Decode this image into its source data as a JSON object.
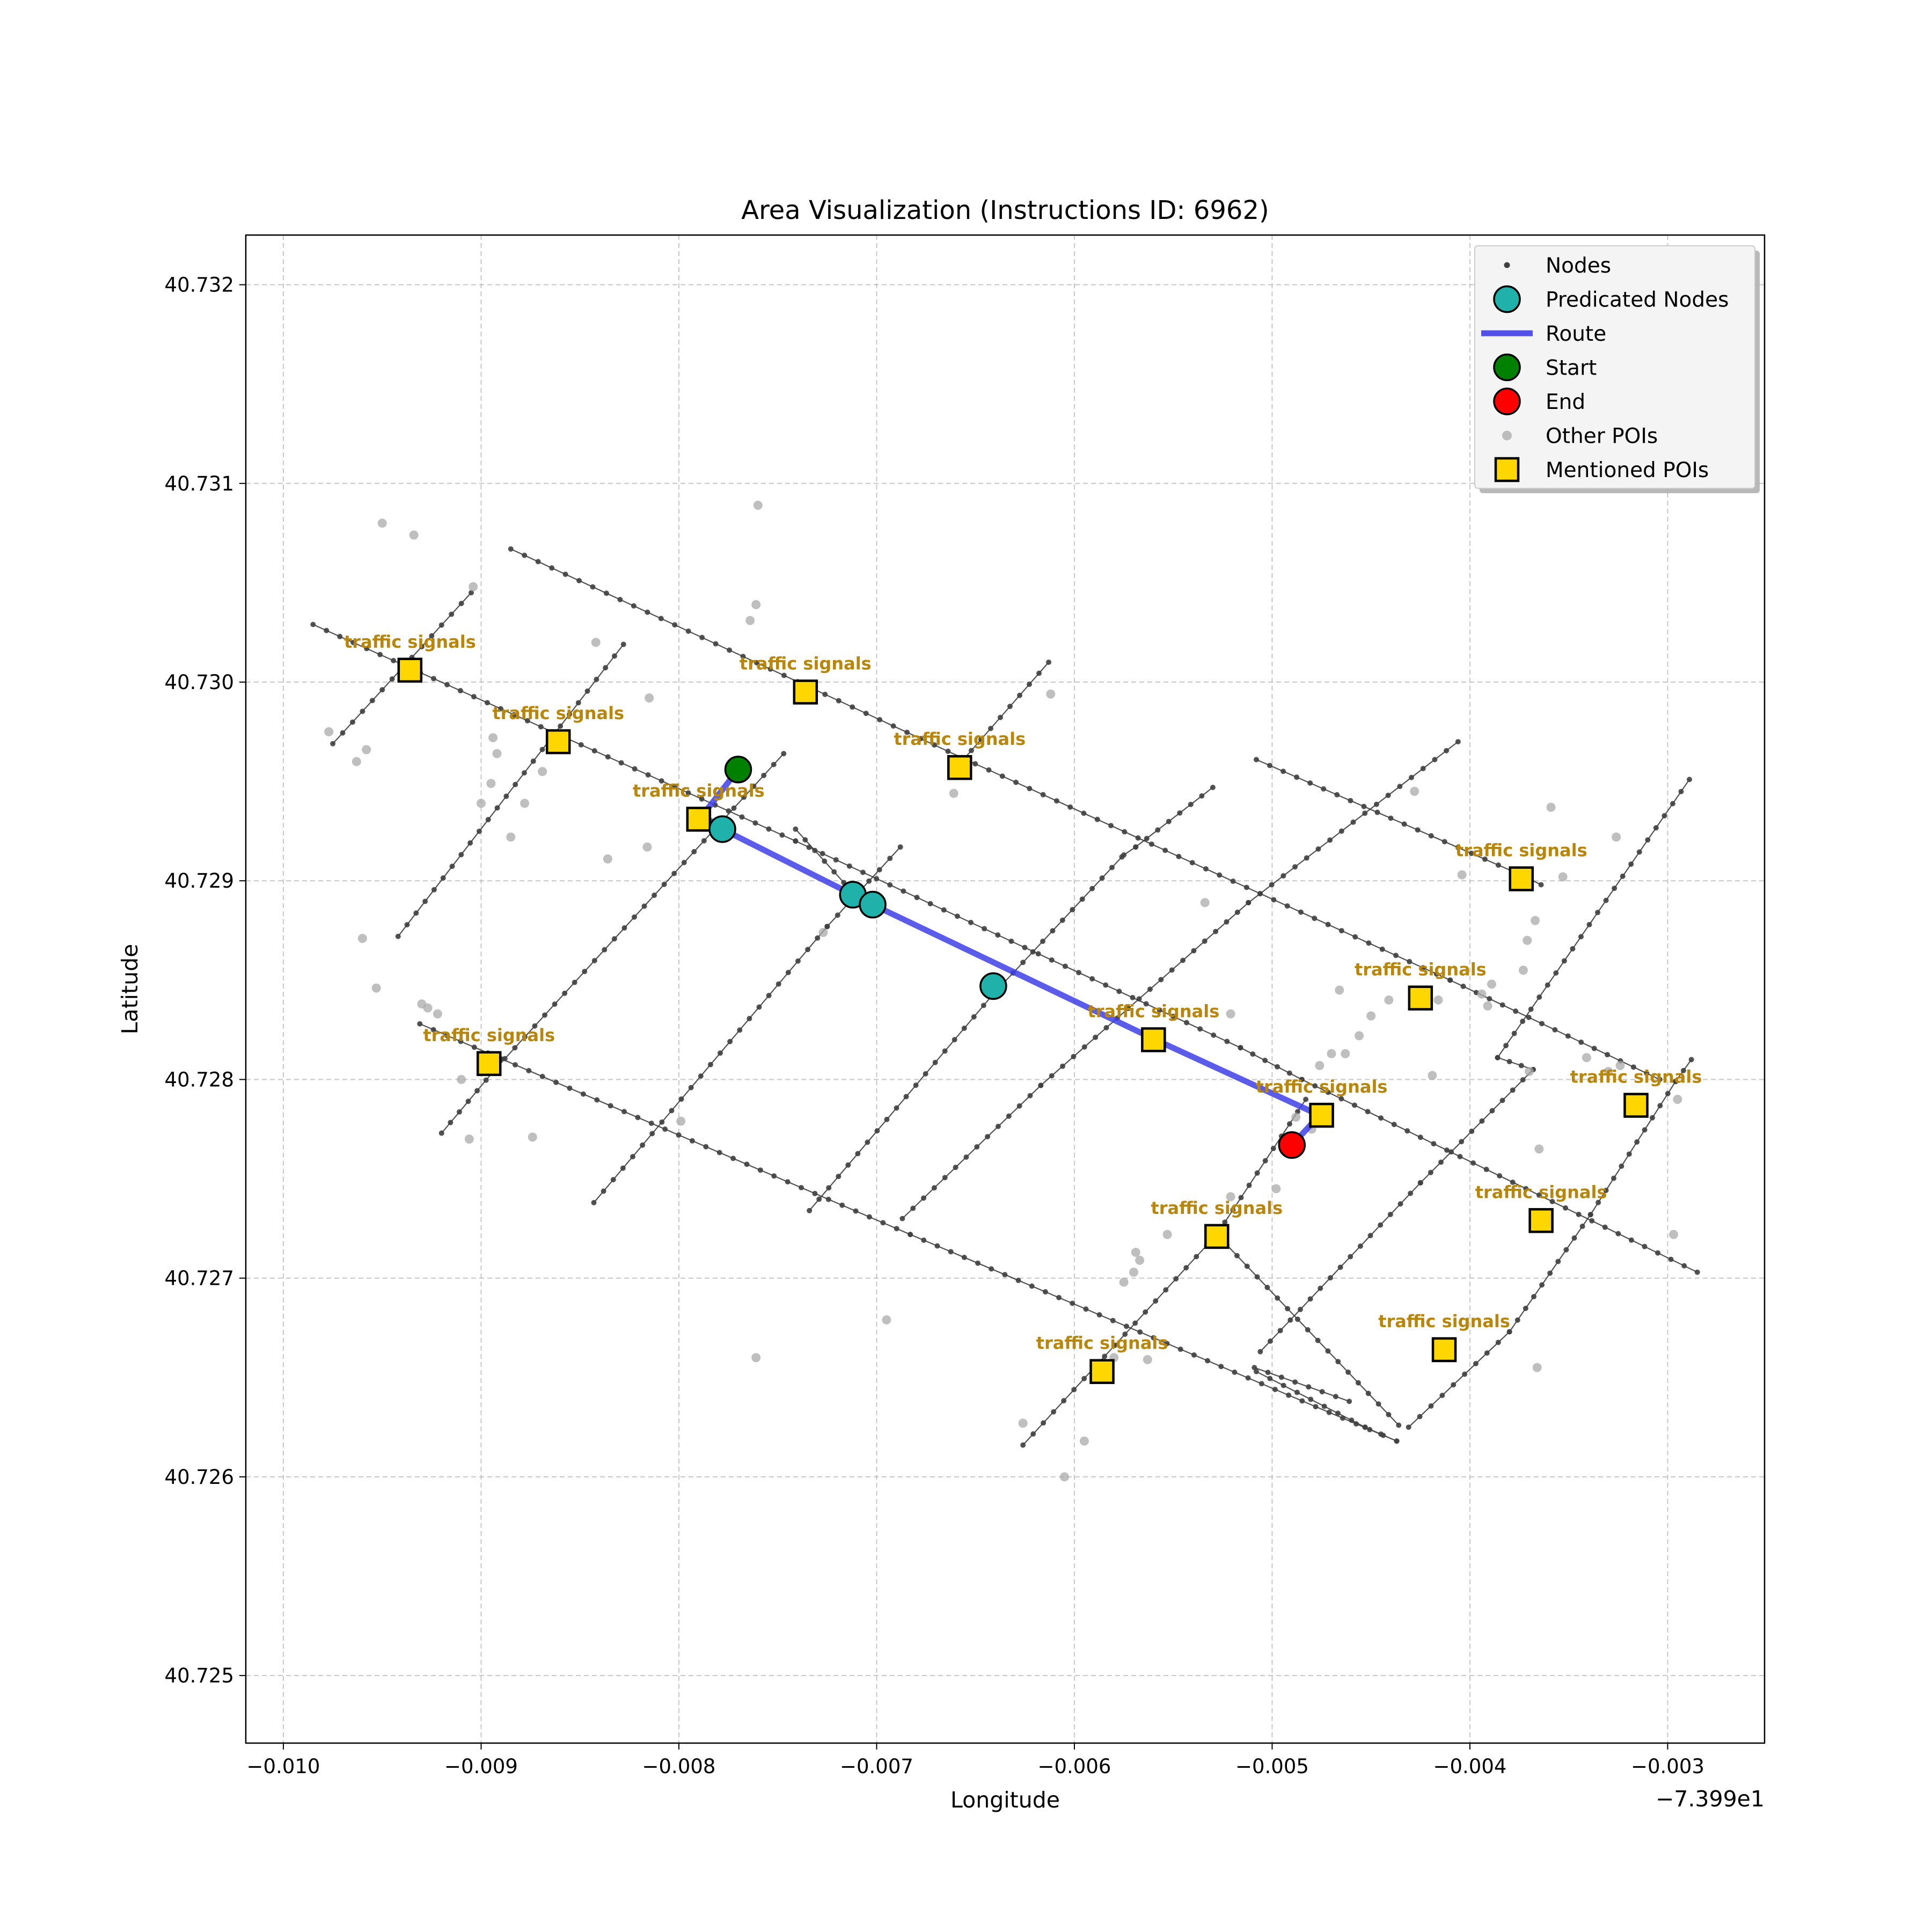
{
  "chart_data": {
    "type": "scatter",
    "title": "Area Visualization (Instructions ID: 6962)",
    "xlabel": "Longitude",
    "ylabel": "Latitude",
    "x_offset_text": "−7.399e1",
    "xlim": [
      -0.01019,
      -0.00251
    ],
    "ylim": [
      40.72466,
      40.73225
    ],
    "x_ticks": [
      -0.01,
      -0.009,
      -0.008,
      -0.007,
      -0.006,
      -0.005,
      -0.004,
      -0.003
    ],
    "x_tick_labels": [
      "−0.010",
      "−0.009",
      "−0.008",
      "−0.007",
      "−0.006",
      "−0.005",
      "−0.004",
      "−0.003"
    ],
    "y_ticks": [
      40.725,
      40.726,
      40.727,
      40.728,
      40.729,
      40.73,
      40.731,
      40.732
    ],
    "y_tick_labels": [
      "40.725",
      "40.726",
      "40.727",
      "40.728",
      "40.729",
      "40.730",
      "40.731",
      "40.732"
    ],
    "grid": true,
    "legend_position": "upper right",
    "legend": [
      {
        "label": "Nodes",
        "marker": "small-dot",
        "color": "#404040"
      },
      {
        "label": "Predicated Nodes",
        "marker": "circle",
        "color": "#20b2aa"
      },
      {
        "label": "Route",
        "marker": "line",
        "color": "#4040e8"
      },
      {
        "label": "Start",
        "marker": "circle",
        "color": "#008000"
      },
      {
        "label": "End",
        "marker": "circle",
        "color": "#ff0000"
      },
      {
        "label": "Other POIs",
        "marker": "dot",
        "color": "#a9a9a9"
      },
      {
        "label": "Mentioned POIs",
        "marker": "square",
        "color": "#ffd700"
      }
    ],
    "colors": {
      "node": "#404040",
      "road": "#333333",
      "predicated": "#20b2aa",
      "route": "#4040e8",
      "start": "#008000",
      "end": "#ff0000",
      "other_poi": "#a9a9a9",
      "mentioned_poi": "#ffd700",
      "poi_label": "#b8860b"
    },
    "roads": [
      [
        [
          -0.00985,
          40.73029
        ],
        [
          -0.00741,
          40.7292
        ],
        [
          -0.00516,
          40.72816
        ],
        [
          -0.00485,
          40.728
        ],
        [
          -0.00285,
          40.72703
        ]
      ],
      [
        [
          -0.00885,
          40.73067
        ],
        [
          -0.00657,
          40.72962
        ],
        [
          -0.0041,
          40.7285
        ],
        [
          -0.00304,
          40.728
        ]
      ],
      [
        [
          -0.00931,
          40.72828
        ],
        [
          -0.00683,
          40.72722
        ],
        [
          -0.00437,
          40.72618
        ],
        [
          -0.00453,
          40.72625
        ],
        [
          -0.00508,
          40.72653
        ]
      ],
      [
        [
          -0.00508,
          40.72961
        ],
        [
          -0.00372,
          40.72902
        ],
        [
          -0.00364,
          40.72898
        ]
      ],
      [
        [
          -0.0092,
          40.72773
        ],
        [
          -0.00893,
          40.72805
        ],
        [
          -0.00747,
          40.72964
        ]
      ],
      [
        [
          -0.00843,
          40.72738
        ],
        [
          -0.00725,
          40.72877
        ],
        [
          -0.00688,
          40.72917
        ]
      ],
      [
        [
          -0.00687,
          40.7273
        ],
        [
          -0.00617,
          40.72797
        ],
        [
          -0.00512,
          40.72889
        ],
        [
          -0.00406,
          40.7297
        ]
      ],
      [
        [
          -0.00734,
          40.72734
        ],
        [
          -0.00641,
          40.72843
        ],
        [
          -0.00576,
          40.72912
        ]
      ],
      [
        [
          -0.00626,
          40.72616
        ],
        [
          -0.00528,
          40.72722
        ],
        [
          -0.00483,
          40.7279
        ]
      ],
      [
        [
          -0.00506,
          40.72663
        ],
        [
          -0.00425,
          40.72748
        ],
        [
          -0.00368,
          40.72805
        ],
        [
          -0.00386,
          40.72811
        ],
        [
          -0.00289,
          40.72951
        ]
      ],
      [
        [
          -0.00431,
          40.72625
        ],
        [
          -0.0038,
          40.72673
        ],
        [
          -0.00339,
          40.72732
        ],
        [
          -0.00296,
          40.72799
        ],
        [
          -0.00288,
          40.7281
        ]
      ],
      [
        [
          -0.00509,
          40.72655
        ],
        [
          -0.00461,
          40.72638
        ]
      ],
      [
        [
          -0.00975,
          40.72969
        ],
        [
          -0.00905,
          40.73045
        ]
      ],
      [
        [
          -0.00942,
          40.72872
        ],
        [
          -0.00828,
          40.73019
        ]
      ],
      [
        [
          -0.00575,
          40.72913
        ],
        [
          -0.00569,
          40.72917
        ],
        [
          -0.0053,
          40.72947
        ]
      ],
      [
        [
          -0.00702,
          40.72883
        ],
        [
          -0.00741,
          40.72926
        ]
      ],
      [
        [
          -0.00657,
          40.7296
        ],
        [
          -0.00613,
          40.7301
        ]
      ],
      [
        [
          -0.00528,
          40.72722
        ],
        [
          -0.00436,
          40.72626
        ]
      ]
    ],
    "nodes_along_roads_step": 7.5e-05,
    "route": [
      [
        -0.0077,
        40.72956
      ],
      [
        -0.00788,
        40.72933
      ],
      [
        -0.00778,
        40.72926
      ],
      [
        -0.00712,
        40.72893
      ],
      [
        -0.00702,
        40.72888
      ],
      [
        -0.00559,
        40.7282
      ],
      [
        -0.00476,
        40.72782
      ],
      [
        -0.0049,
        40.72767
      ]
    ],
    "predicated_nodes": [
      [
        -0.00778,
        40.72926
      ],
      [
        -0.00712,
        40.72893
      ],
      [
        -0.00702,
        40.72888
      ],
      [
        -0.00641,
        40.72847
      ]
    ],
    "start": [
      -0.0077,
      40.72956
    ],
    "end": [
      -0.0049,
      40.72767
    ],
    "other_pois": [
      [
        -0.0095,
        40.7308
      ],
      [
        -0.00934,
        40.73074
      ],
      [
        -0.0076,
        40.73089
      ],
      [
        -0.00904,
        40.73048
      ],
      [
        -0.00761,
        40.73039
      ],
      [
        -0.00764,
        40.73031
      ],
      [
        -0.00842,
        40.7302
      ],
      [
        -0.00815,
        40.72992
      ],
      [
        -0.00612,
        40.72994
      ],
      [
        -0.00977,
        40.72975
      ],
      [
        -0.00894,
        40.72972
      ],
      [
        -0.00892,
        40.72964
      ],
      [
        -0.00963,
        40.7296
      ],
      [
        -0.00958,
        40.72966
      ],
      [
        -0.00869,
        40.72955
      ],
      [
        -0.009,
        40.72939
      ],
      [
        -0.00878,
        40.72939
      ],
      [
        -0.00895,
        40.72949
      ],
      [
        -0.00661,
        40.72944
      ],
      [
        -0.00816,
        40.72917
      ],
      [
        -0.00885,
        40.72922
      ],
      [
        -0.00836,
        40.72911
      ],
      [
        -0.0096,
        40.72871
      ],
      [
        -0.00727,
        40.72874
      ],
      [
        -0.00953,
        40.72846
      ],
      [
        -0.0093,
        40.72838
      ],
      [
        -0.00922,
        40.72833
      ],
      [
        -0.00927,
        40.72836
      ],
      [
        -0.0091,
        40.728
      ],
      [
        -0.00906,
        40.7277
      ],
      [
        -0.00874,
        40.72771
      ],
      [
        -0.00799,
        40.72779
      ],
      [
        -0.00521,
        40.72833
      ],
      [
        -0.00534,
        40.72889
      ],
      [
        -0.00428,
        40.72945
      ],
      [
        -0.00404,
        40.72903
      ],
      [
        -0.00359,
        40.72937
      ],
      [
        -0.00353,
        40.72902
      ],
      [
        -0.00326,
        40.72922
      ],
      [
        -0.00367,
        40.7288
      ],
      [
        -0.00371,
        40.7287
      ],
      [
        -0.00373,
        40.72855
      ],
      [
        -0.00389,
        40.72848
      ],
      [
        -0.00391,
        40.72837
      ],
      [
        -0.00394,
        40.72843
      ],
      [
        -0.00416,
        40.7284
      ],
      [
        -0.00441,
        40.7284
      ],
      [
        -0.0045,
        40.72832
      ],
      [
        -0.00456,
        40.72822
      ],
      [
        -0.00463,
        40.72813
      ],
      [
        -0.0047,
        40.72813
      ],
      [
        -0.00476,
        40.72807
      ],
      [
        -0.00466,
        40.72845
      ],
      [
        -0.00419,
        40.72802
      ],
      [
        -0.0037,
        40.72804
      ],
      [
        -0.00341,
        40.72811
      ],
      [
        -0.0033,
        40.72804
      ],
      [
        -0.00324,
        40.72807
      ],
      [
        -0.00295,
        40.7279
      ],
      [
        -0.00297,
        40.72722
      ],
      [
        -0.00488,
        40.72781
      ],
      [
        -0.0048,
        40.72775
      ],
      [
        -0.00473,
        40.72786
      ],
      [
        -0.00498,
        40.72745
      ],
      [
        -0.00521,
        40.72741
      ],
      [
        -0.00553,
        40.72722
      ],
      [
        -0.00569,
        40.72713
      ],
      [
        -0.00567,
        40.72709
      ],
      [
        -0.0057,
        40.72703
      ],
      [
        -0.00575,
        40.72698
      ],
      [
        -0.0058,
        40.7266
      ],
      [
        -0.00563,
        40.72659
      ],
      [
        -0.00695,
        40.72679
      ],
      [
        -0.00761,
        40.7266
      ],
      [
        -0.00595,
        40.72618
      ],
      [
        -0.00626,
        40.72627
      ],
      [
        -0.00605,
        40.726
      ],
      [
        -0.00365,
        40.72765
      ],
      [
        -0.00366,
        40.72655
      ]
    ],
    "mentioned_pois": [
      {
        "x": -0.00936,
        "y": 40.73006,
        "label": "traffic signals"
      },
      {
        "x": -0.00861,
        "y": 40.7297,
        "label": "traffic signals"
      },
      {
        "x": -0.00736,
        "y": 40.72995,
        "label": "traffic signals"
      },
      {
        "x": -0.0079,
        "y": 40.72931,
        "label": "traffic signals"
      },
      {
        "x": -0.00658,
        "y": 40.72957,
        "label": "traffic signals"
      },
      {
        "x": -0.00896,
        "y": 40.72808,
        "label": "traffic signals"
      },
      {
        "x": -0.0056,
        "y": 40.7282,
        "label": "traffic signals"
      },
      {
        "x": -0.00475,
        "y": 40.72782,
        "label": "traffic signals"
      },
      {
        "x": -0.00425,
        "y": 40.72841,
        "label": "traffic signals"
      },
      {
        "x": -0.00374,
        "y": 40.72901,
        "label": "traffic signals"
      },
      {
        "x": -0.00316,
        "y": 40.72787,
        "label": "traffic signals"
      },
      {
        "x": -0.00364,
        "y": 40.72729,
        "label": "traffic signals"
      },
      {
        "x": -0.00528,
        "y": 40.72721,
        "label": "traffic signals"
      },
      {
        "x": -0.00413,
        "y": 40.72664,
        "label": "traffic signals"
      },
      {
        "x": -0.00586,
        "y": 40.72653,
        "label": "traffic signals"
      }
    ]
  }
}
